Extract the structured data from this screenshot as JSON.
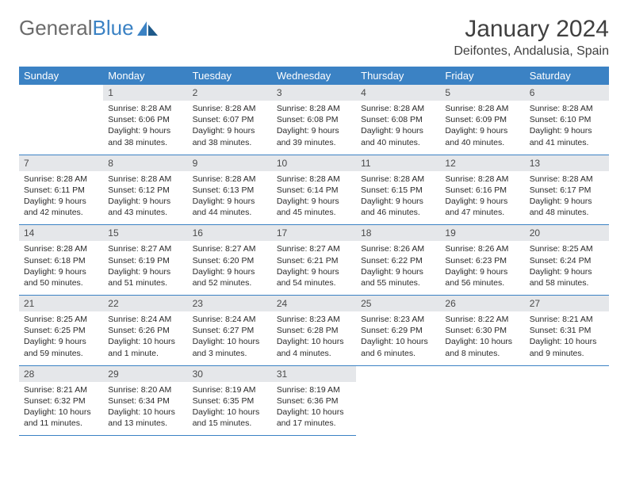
{
  "logo": {
    "part1": "General",
    "part2": "Blue"
  },
  "title": "January 2024",
  "location": "Deifontes, Andalusia, Spain",
  "colors": {
    "header_bg": "#3b82c4",
    "header_text": "#ffffff",
    "daynum_bg": "#e5e7ea",
    "daynum_text": "#4a4a4a",
    "body_text": "#2a2a2a",
    "rule": "#3b82c4",
    "logo_gray": "#6b6b6b",
    "logo_blue": "#3b82c4"
  },
  "weekdays": [
    "Sunday",
    "Monday",
    "Tuesday",
    "Wednesday",
    "Thursday",
    "Friday",
    "Saturday"
  ],
  "grid": {
    "leading_blanks": 1,
    "days_in_month": 31,
    "trailing_blanks": 3
  },
  "days": [
    {
      "n": 1,
      "sunrise": "8:28 AM",
      "sunset": "6:06 PM",
      "daylight": "9 hours and 38 minutes."
    },
    {
      "n": 2,
      "sunrise": "8:28 AM",
      "sunset": "6:07 PM",
      "daylight": "9 hours and 38 minutes."
    },
    {
      "n": 3,
      "sunrise": "8:28 AM",
      "sunset": "6:08 PM",
      "daylight": "9 hours and 39 minutes."
    },
    {
      "n": 4,
      "sunrise": "8:28 AM",
      "sunset": "6:08 PM",
      "daylight": "9 hours and 40 minutes."
    },
    {
      "n": 5,
      "sunrise": "8:28 AM",
      "sunset": "6:09 PM",
      "daylight": "9 hours and 40 minutes."
    },
    {
      "n": 6,
      "sunrise": "8:28 AM",
      "sunset": "6:10 PM",
      "daylight": "9 hours and 41 minutes."
    },
    {
      "n": 7,
      "sunrise": "8:28 AM",
      "sunset": "6:11 PM",
      "daylight": "9 hours and 42 minutes."
    },
    {
      "n": 8,
      "sunrise": "8:28 AM",
      "sunset": "6:12 PM",
      "daylight": "9 hours and 43 minutes."
    },
    {
      "n": 9,
      "sunrise": "8:28 AM",
      "sunset": "6:13 PM",
      "daylight": "9 hours and 44 minutes."
    },
    {
      "n": 10,
      "sunrise": "8:28 AM",
      "sunset": "6:14 PM",
      "daylight": "9 hours and 45 minutes."
    },
    {
      "n": 11,
      "sunrise": "8:28 AM",
      "sunset": "6:15 PM",
      "daylight": "9 hours and 46 minutes."
    },
    {
      "n": 12,
      "sunrise": "8:28 AM",
      "sunset": "6:16 PM",
      "daylight": "9 hours and 47 minutes."
    },
    {
      "n": 13,
      "sunrise": "8:28 AM",
      "sunset": "6:17 PM",
      "daylight": "9 hours and 48 minutes."
    },
    {
      "n": 14,
      "sunrise": "8:28 AM",
      "sunset": "6:18 PM",
      "daylight": "9 hours and 50 minutes."
    },
    {
      "n": 15,
      "sunrise": "8:27 AM",
      "sunset": "6:19 PM",
      "daylight": "9 hours and 51 minutes."
    },
    {
      "n": 16,
      "sunrise": "8:27 AM",
      "sunset": "6:20 PM",
      "daylight": "9 hours and 52 minutes."
    },
    {
      "n": 17,
      "sunrise": "8:27 AM",
      "sunset": "6:21 PM",
      "daylight": "9 hours and 54 minutes."
    },
    {
      "n": 18,
      "sunrise": "8:26 AM",
      "sunset": "6:22 PM",
      "daylight": "9 hours and 55 minutes."
    },
    {
      "n": 19,
      "sunrise": "8:26 AM",
      "sunset": "6:23 PM",
      "daylight": "9 hours and 56 minutes."
    },
    {
      "n": 20,
      "sunrise": "8:25 AM",
      "sunset": "6:24 PM",
      "daylight": "9 hours and 58 minutes."
    },
    {
      "n": 21,
      "sunrise": "8:25 AM",
      "sunset": "6:25 PM",
      "daylight": "9 hours and 59 minutes."
    },
    {
      "n": 22,
      "sunrise": "8:24 AM",
      "sunset": "6:26 PM",
      "daylight": "10 hours and 1 minute."
    },
    {
      "n": 23,
      "sunrise": "8:24 AM",
      "sunset": "6:27 PM",
      "daylight": "10 hours and 3 minutes."
    },
    {
      "n": 24,
      "sunrise": "8:23 AM",
      "sunset": "6:28 PM",
      "daylight": "10 hours and 4 minutes."
    },
    {
      "n": 25,
      "sunrise": "8:23 AM",
      "sunset": "6:29 PM",
      "daylight": "10 hours and 6 minutes."
    },
    {
      "n": 26,
      "sunrise": "8:22 AM",
      "sunset": "6:30 PM",
      "daylight": "10 hours and 8 minutes."
    },
    {
      "n": 27,
      "sunrise": "8:21 AM",
      "sunset": "6:31 PM",
      "daylight": "10 hours and 9 minutes."
    },
    {
      "n": 28,
      "sunrise": "8:21 AM",
      "sunset": "6:32 PM",
      "daylight": "10 hours and 11 minutes."
    },
    {
      "n": 29,
      "sunrise": "8:20 AM",
      "sunset": "6:34 PM",
      "daylight": "10 hours and 13 minutes."
    },
    {
      "n": 30,
      "sunrise": "8:19 AM",
      "sunset": "6:35 PM",
      "daylight": "10 hours and 15 minutes."
    },
    {
      "n": 31,
      "sunrise": "8:19 AM",
      "sunset": "6:36 PM",
      "daylight": "10 hours and 17 minutes."
    }
  ],
  "labels": {
    "sunrise": "Sunrise:",
    "sunset": "Sunset:",
    "daylight": "Daylight:"
  }
}
